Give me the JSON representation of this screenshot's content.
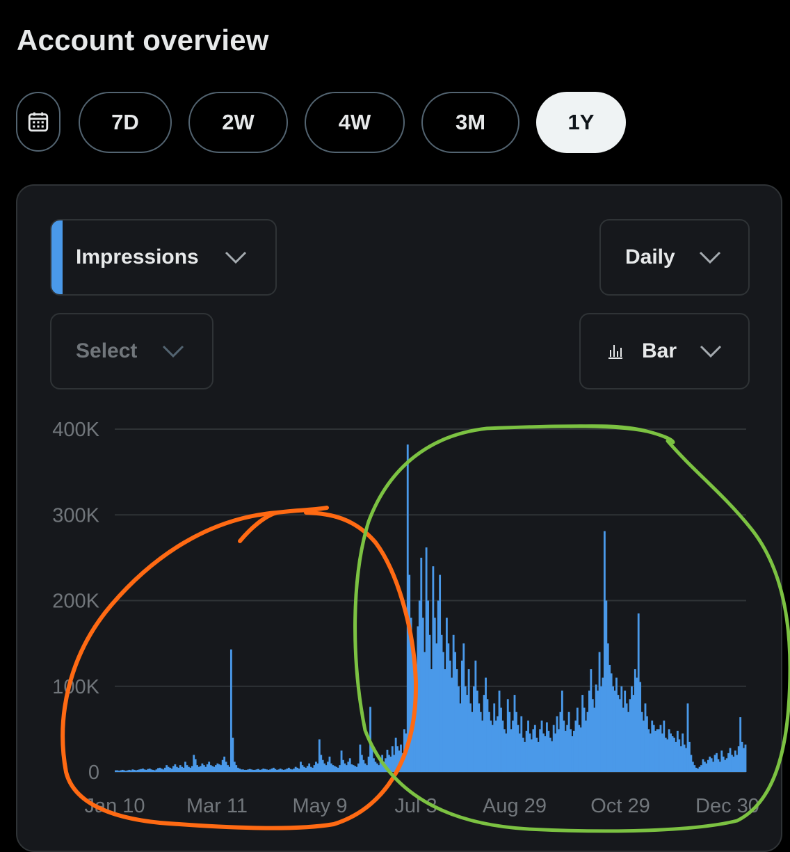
{
  "header": {
    "title": "Account overview"
  },
  "ranges": [
    "7D",
    "2W",
    "4W",
    "3M",
    "1Y"
  ],
  "active_range": "1Y",
  "controls": {
    "metric": "Impressions",
    "interval": "Daily",
    "compare_placeholder": "Select",
    "chart_type": "Bar"
  },
  "colors": {
    "accent": "#4a99e9",
    "bar": "#4a99e9",
    "annotation_orange": "#ff6a13",
    "annotation_green": "#7cc242"
  },
  "icons": {
    "calendar": "calendar-icon",
    "chevron": "chevron-down-icon",
    "bar_chart": "bar-chart-icon"
  },
  "chart_data": {
    "type": "bar",
    "title": "",
    "xlabel": "",
    "ylabel": "",
    "ylim": [
      0,
      400000
    ],
    "yticks": [
      0,
      100000,
      200000,
      300000,
      400000
    ],
    "ytick_labels": [
      "0",
      "100K",
      "200K",
      "300K",
      "400K"
    ],
    "xtick_labels": [
      "Jan 10",
      "Mar 11",
      "May 9",
      "Jul 3",
      "Aug 29",
      "Oct 29",
      "Dec 30"
    ],
    "grid": true,
    "series": [
      {
        "values": [
          2000,
          2000,
          1500,
          2000,
          2500,
          2000,
          1500,
          2000,
          2500,
          2000,
          3000,
          2500,
          2000,
          2500,
          3000,
          3500,
          4000,
          3000,
          2500,
          3500,
          4000,
          3000,
          2500,
          2000,
          3000,
          4500,
          5000,
          4000,
          3000,
          5000,
          8000,
          6000,
          5000,
          4000,
          7000,
          9000,
          6000,
          5000,
          8000,
          6000,
          5000,
          12000,
          8000,
          6000,
          5000,
          7000,
          20000,
          15000,
          8000,
          6000,
          7000,
          10000,
          8000,
          6000,
          9000,
          12000,
          8000,
          7000,
          6000,
          8000,
          10000,
          9000,
          8000,
          14000,
          18000,
          12000,
          8000,
          6000,
          143000,
          40000,
          12000,
          8000,
          5000,
          4000,
          3000,
          3000,
          2500,
          2500,
          3000,
          3500,
          3000,
          2500,
          2500,
          3000,
          3500,
          2500,
          3000,
          4000,
          3500,
          3000,
          2500,
          3000,
          4000,
          5000,
          3500,
          2500,
          3000,
          4000,
          3000,
          2500,
          3000,
          4000,
          5000,
          3500,
          3000,
          4000,
          6000,
          5000,
          4000,
          12000,
          8000,
          6000,
          5000,
          7000,
          10000,
          6000,
          5000,
          8000,
          12000,
          10000,
          38000,
          20000,
          14000,
          10000,
          8000,
          12000,
          18000,
          10000,
          8000,
          7000,
          6000,
          5000,
          8000,
          25000,
          14000,
          10000,
          8000,
          12000,
          16000,
          9000,
          8000,
          7000,
          6000,
          10000,
          32000,
          20000,
          14000,
          10000,
          8000,
          18000,
          76000,
          30000,
          16000,
          12000,
          10000,
          8000,
          14000,
          20000,
          12000,
          16000,
          26000,
          20000,
          18000,
          30000,
          20000,
          40000,
          30000,
          25000,
          32000,
          22000,
          50000,
          45000,
          382000,
          230000,
          180000,
          150000,
          120000,
          100000,
          170000,
          200000,
          250000,
          180000,
          140000,
          262000,
          200000,
          160000,
          120000,
          240000,
          180000,
          150000,
          200000,
          230000,
          160000,
          140000,
          120000,
          180000,
          150000,
          130000,
          110000,
          160000,
          140000,
          120000,
          100000,
          80000,
          130000,
          150000,
          100000,
          90000,
          120000,
          80000,
          70000,
          100000,
          130000,
          95000,
          80000,
          70000,
          60000,
          90000,
          110000,
          85000,
          70000,
          60000,
          55000,
          80000,
          60000,
          65000,
          95000,
          75000,
          60000,
          50000,
          45000,
          85000,
          70000,
          50000,
          60000,
          90000,
          70000,
          55000,
          45000,
          65000,
          40000,
          35000,
          48000,
          60000,
          45000,
          38000,
          50000,
          55000,
          40000,
          35000,
          50000,
          60000,
          45000,
          42000,
          58000,
          48000,
          40000,
          36000,
          55000,
          45000,
          65000,
          50000,
          70000,
          95000,
          60000,
          48000,
          55000,
          70000,
          50000,
          42000,
          48000,
          60000,
          75000,
          55000,
          52000,
          90000,
          75000,
          60000,
          70000,
          95000,
          120000,
          85000,
          75000,
          102000,
          95000,
          140000,
          100000,
          110000,
          281000,
          200000,
          150000,
          125000,
          115000,
          100000,
          95000,
          110000,
          90000,
          85000,
          100000,
          75000,
          95000,
          80000,
          70000,
          85000,
          100000,
          90000,
          120000,
          110000,
          185000,
          105000,
          70000,
          60000,
          80000,
          65000,
          50000,
          45000,
          60000,
          55000,
          48000,
          50000,
          50000,
          55000,
          45000,
          60000,
          40000,
          38000,
          50000,
          45000,
          42000,
          40000,
          35000,
          48000,
          38000,
          30000,
          45000,
          32000,
          28000,
          80000,
          35000,
          20000,
          12000,
          8000,
          5000,
          4000,
          6000,
          8000,
          15000,
          12000,
          10000,
          14000,
          18000,
          16000,
          12000,
          20000,
          22000,
          15000,
          12000,
          25000,
          18000,
          14000,
          16000,
          22000,
          28000,
          20000,
          18000,
          25000,
          20000,
          30000,
          64000,
          35000,
          28000,
          32000
        ]
      }
    ]
  }
}
